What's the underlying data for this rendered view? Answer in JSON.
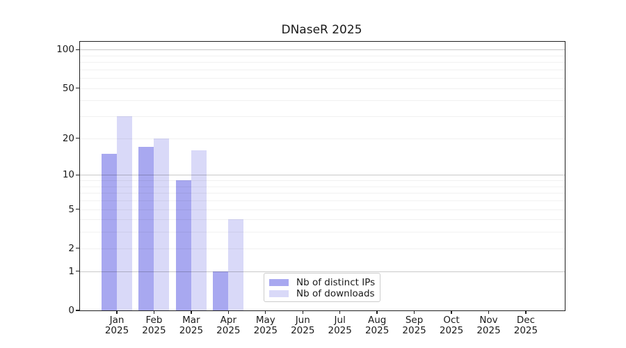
{
  "chart_data": {
    "type": "bar",
    "title": "DNaseR 2025",
    "categories": [
      {
        "month": "Jan",
        "year": "2025"
      },
      {
        "month": "Feb",
        "year": "2025"
      },
      {
        "month": "Mar",
        "year": "2025"
      },
      {
        "month": "Apr",
        "year": "2025"
      },
      {
        "month": "May",
        "year": "2025"
      },
      {
        "month": "Jun",
        "year": "2025"
      },
      {
        "month": "Jul",
        "year": "2025"
      },
      {
        "month": "Aug",
        "year": "2025"
      },
      {
        "month": "Sep",
        "year": "2025"
      },
      {
        "month": "Oct",
        "year": "2025"
      },
      {
        "month": "Nov",
        "year": "2025"
      },
      {
        "month": "Dec",
        "year": "2025"
      }
    ],
    "series": [
      {
        "name": "Nb of distinct IPs",
        "color": "#a8a8f0",
        "values": [
          15,
          17,
          9,
          1,
          null,
          null,
          null,
          null,
          null,
          null,
          null,
          null
        ]
      },
      {
        "name": "Nb of downloads",
        "color": "#d9d9f8",
        "values": [
          30,
          20,
          16,
          4,
          null,
          null,
          null,
          null,
          null,
          null,
          null,
          null
        ]
      }
    ],
    "xlabel": "",
    "ylabel": "",
    "y_axis": {
      "scale": "log(value+1)",
      "ticks": [
        0,
        1,
        2,
        5,
        10,
        20,
        50,
        100
      ],
      "ylim": [
        0,
        115
      ],
      "major_gridlines": [
        1,
        10,
        100
      ],
      "minor_gridlines": [
        2,
        3,
        4,
        5,
        6,
        7,
        8,
        9,
        20,
        30,
        40,
        50,
        60,
        70,
        80,
        90
      ]
    },
    "legend": {
      "position": "lower-center"
    }
  },
  "colors": {
    "axis": "#1f1f1f",
    "text": "#1a1a1a",
    "legend_border": "#cccccc",
    "background": "#ffffff"
  }
}
